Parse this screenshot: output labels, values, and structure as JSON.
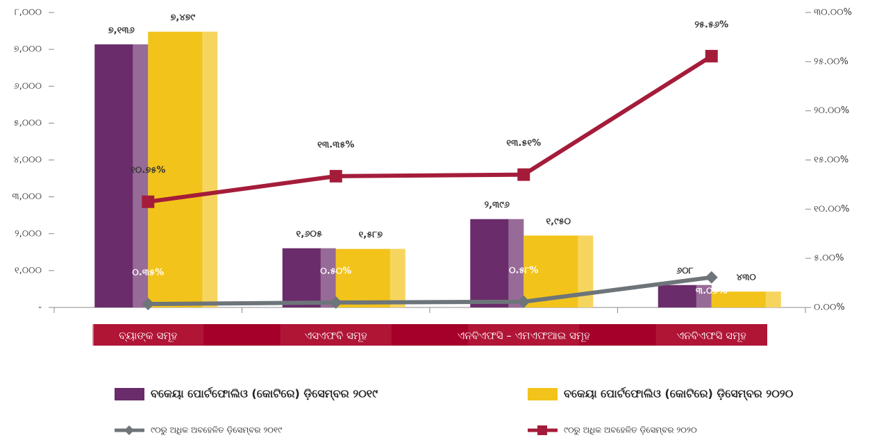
{
  "chart_data": {
    "type": "bar",
    "categories": [
      "ବ୍ୟାଙ୍କ ସମୂହ",
      "ଏସଏଫବି ସମୂହ",
      "ଏନବିଏଫସି – ଏମଏଫଆଇ ସମୂହ",
      "ଏନବିଏଫସି ସମୂହ"
    ],
    "series": [
      {
        "name": "ବକେୟା ପୋର୍ଟଫୋଲିଓ (କୋଟିରେ) ଡ଼ିସେମ୍ବର ୨୦୧୯",
        "type": "bar",
        "color": "#6a2c6a",
        "values": [
          7136,
          1605,
          2396,
          608
        ],
        "value_labels": [
          "୭,୧୩୬",
          "୧,୬୦୫",
          "୨,୩୯୬",
          "୬୦୮"
        ]
      },
      {
        "name": "ବକେୟା ପୋର୍ଟଫୋଲିଓ (କୋଟିରେ) ଡ଼ିସେମ୍ବର ୨୦୨୦",
        "type": "bar",
        "color": "#f2c31a",
        "values": [
          7479,
          1587,
          1950,
          430
        ],
        "value_labels": [
          "୭,୪୭୯",
          "୧,୫୮୭",
          "୧,୯୫୦",
          "୪୩୦"
        ]
      },
      {
        "name": "୯୦ରୁ ଅଧିକ ଅବହେଳିତ ଡ଼ିସେମ୍ବର ୨୦୧୯",
        "type": "line",
        "axis": "y2",
        "color": "#6d757a",
        "marker": "diamond",
        "values": [
          0.35,
          0.5,
          0.58,
          3.06
        ],
        "value_labels": [
          "୦.୩୫%",
          "୦.୫୦%",
          "୦.୫୮%",
          "୩.୦୬%"
        ]
      },
      {
        "name": "୯୦ରୁ ଅଧିକ ଅବହେଳିତ ଡ଼ିସେମ୍ବର ୨୦୨୦",
        "type": "line",
        "axis": "y2",
        "color": "#a51c3a",
        "marker": "square",
        "values": [
          10.75,
          13.35,
          13.51,
          25.56
        ],
        "value_labels": [
          "୧୦.୭୫%",
          "୧୩.୩୫%",
          "୧୩.୫୧%",
          "୨୫.୫୬%"
        ]
      }
    ],
    "ylim": [
      0,
      8000
    ],
    "yticks": [
      {
        "value": 0,
        "label": "-"
      },
      {
        "value": 1000,
        "label": "୧,୦୦୦"
      },
      {
        "value": 2000,
        "label": "୨,୦୦୦"
      },
      {
        "value": 3000,
        "label": "୩,୦୦୦"
      },
      {
        "value": 4000,
        "label": "୪,୦୦୦"
      },
      {
        "value": 5000,
        "label": "୫,୦୦୦"
      },
      {
        "value": 6000,
        "label": "୬,୦୦୦"
      },
      {
        "value": 7000,
        "label": "୭,୦୦୦"
      },
      {
        "value": 8000,
        "label": "୮,୦୦୦"
      }
    ],
    "y2lim": [
      0,
      30
    ],
    "y2ticks": [
      {
        "value": 0,
        "label": "୦.୦୦%"
      },
      {
        "value": 5,
        "label": "୫.୦୦%"
      },
      {
        "value": 10,
        "label": "୧୦.୦୦%"
      },
      {
        "value": 15,
        "label": "୧୫.୦୦%"
      },
      {
        "value": 20,
        "label": "୨୦.୦୦%"
      },
      {
        "value": 25,
        "label": "୨୫.୦୦%"
      },
      {
        "value": 30,
        "label": "୩୦.୦୦%"
      }
    ],
    "grid": false
  }
}
